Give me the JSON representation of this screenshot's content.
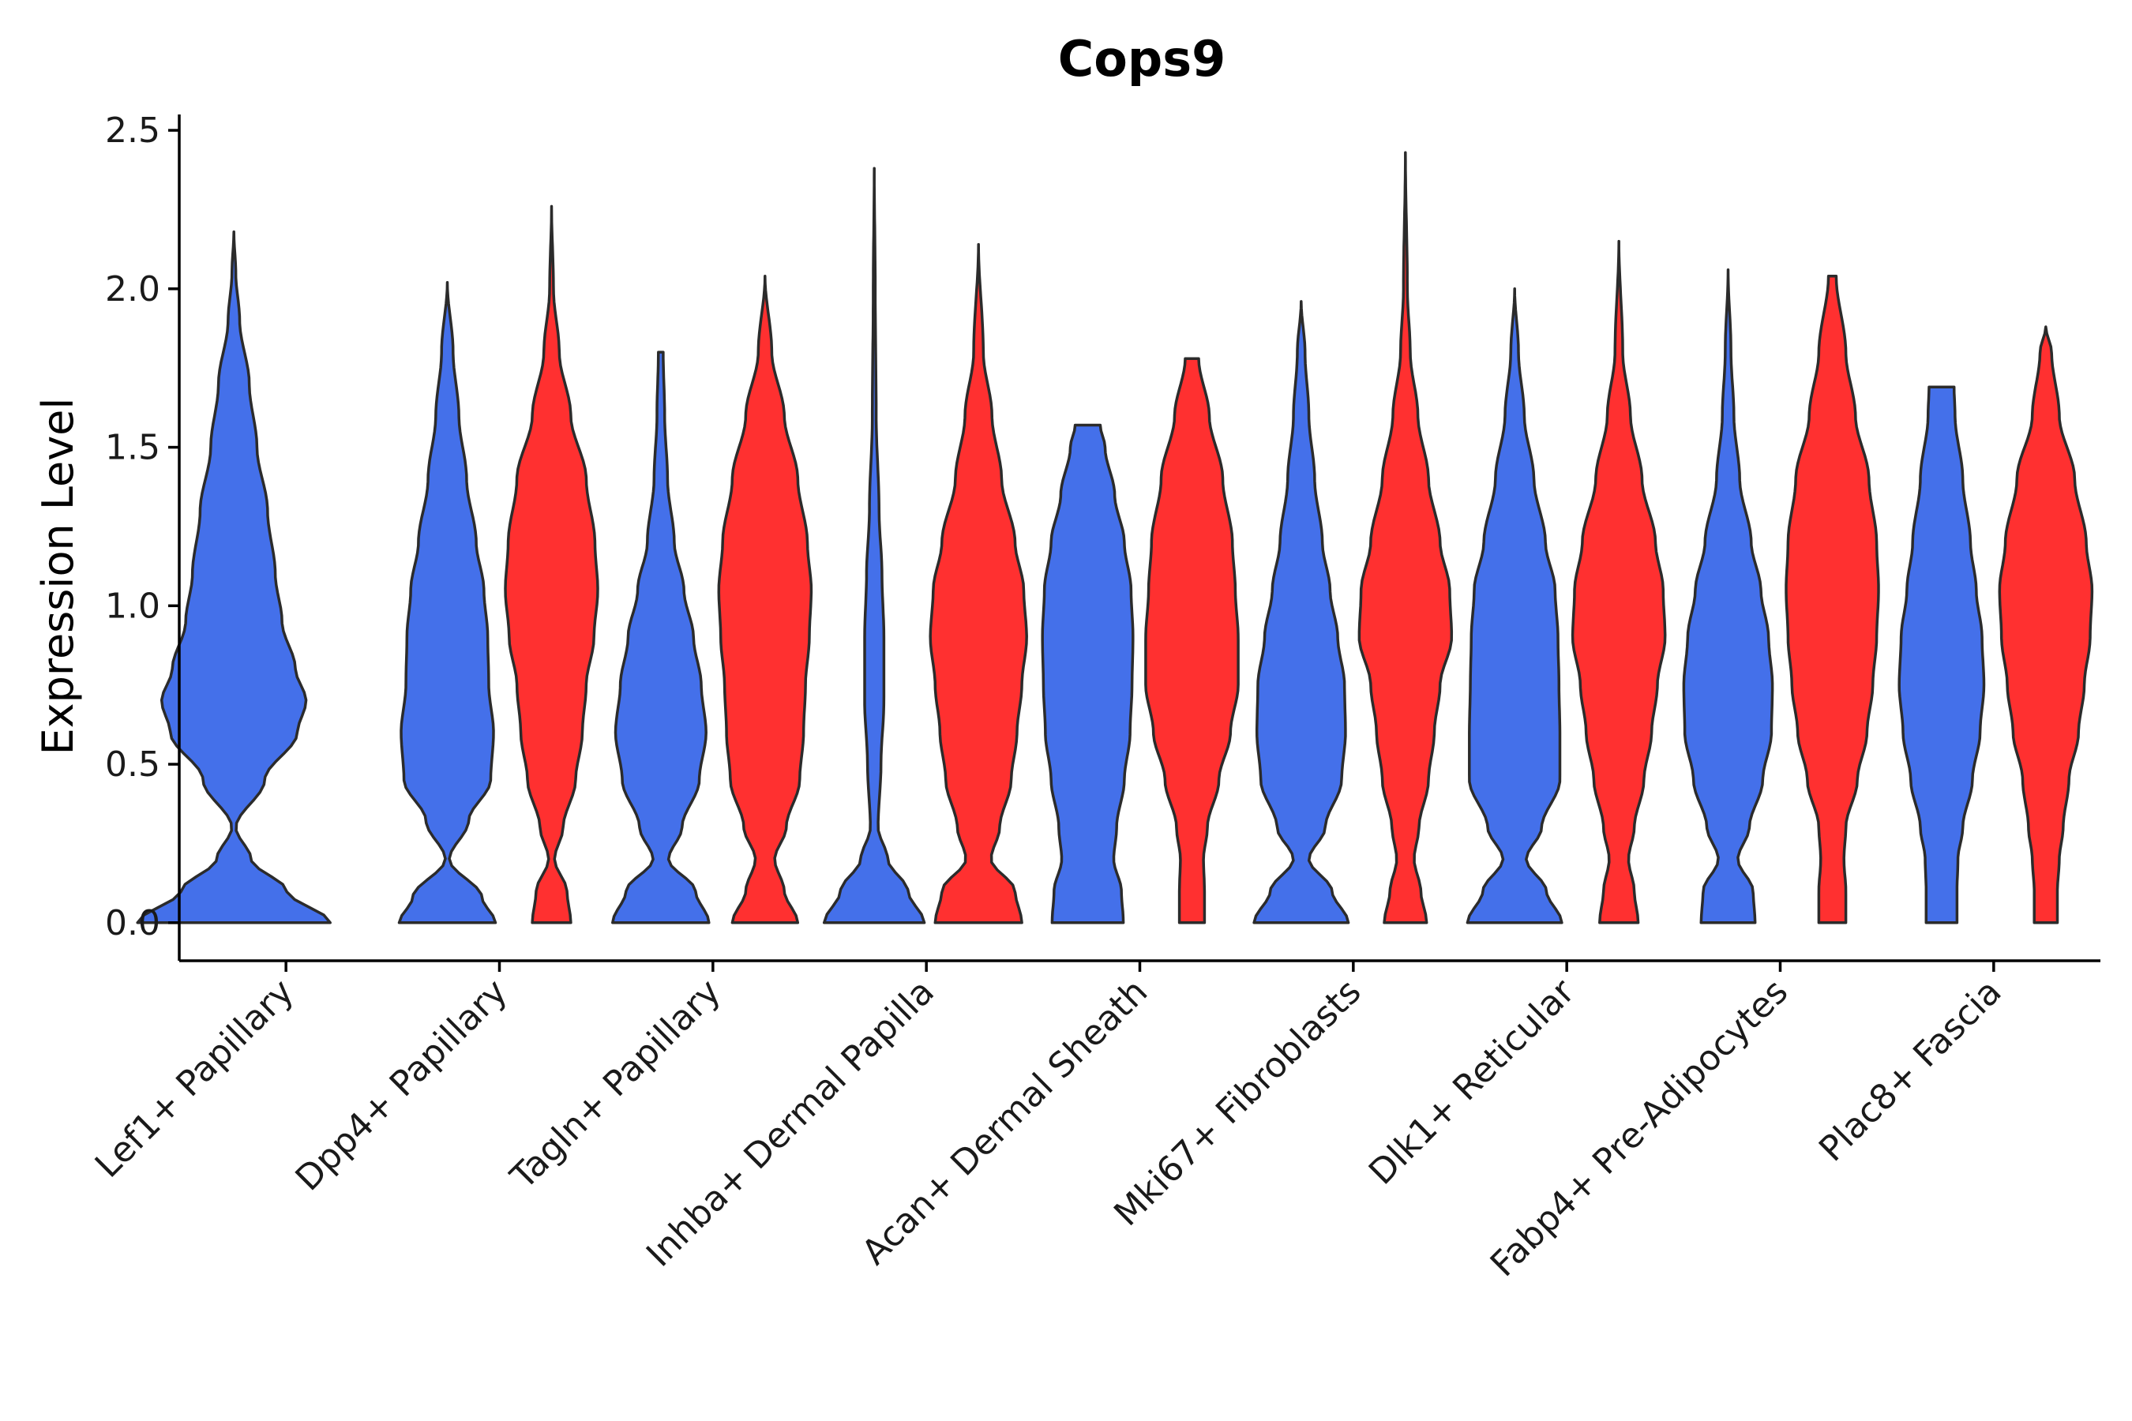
{
  "chart_data": {
    "type": "violin",
    "title": "Cops9",
    "xlabel": "",
    "ylabel": "Expression Level",
    "ylim": [
      -0.12,
      2.55
    ],
    "yticks": [
      "0.0",
      "0.5",
      "1.0",
      "1.5",
      "2.0",
      "2.5"
    ],
    "ytick_values": [
      0,
      0.5,
      1.0,
      1.5,
      2.0,
      2.5
    ],
    "groups": [
      "blue",
      "red"
    ],
    "colors": {
      "blue": "#4470EA",
      "red": "#FF3030"
    },
    "categories": [
      "Lef1+ Papillary",
      "Dpp4+ Papillary",
      "Tagln+ Papillary",
      "Inhba+ Dermal Papilla",
      "Acan+ Dermal Sheath",
      "Mki67+ Fibroblasts",
      "Dlk1+ Reticular",
      "Fabp4+ Pre-Adipocytes",
      "Plac8+ Fascia"
    ],
    "violins": [
      {
        "category": 0,
        "group": "blue",
        "max": 2.18,
        "flatTop": false,
        "profile": [
          [
            0,
            1.0
          ],
          [
            0.1,
            0.55
          ],
          [
            0.2,
            0.18
          ],
          [
            0.3,
            0.02
          ],
          [
            0.45,
            0.32
          ],
          [
            0.6,
            0.66
          ],
          [
            0.7,
            0.75
          ],
          [
            0.8,
            0.64
          ],
          [
            0.95,
            0.5
          ],
          [
            1.1,
            0.43
          ],
          [
            1.3,
            0.35
          ],
          [
            1.5,
            0.24
          ],
          [
            1.7,
            0.16
          ],
          [
            1.9,
            0.06
          ],
          [
            2.05,
            0.02
          ],
          [
            2.18,
            0
          ]
        ]
      },
      {
        "category": 1,
        "group": "blue",
        "max": 2.02,
        "flatTop": false,
        "profile": [
          [
            0,
            0.5
          ],
          [
            0.08,
            0.36
          ],
          [
            0.2,
            0.02
          ],
          [
            0.32,
            0.22
          ],
          [
            0.45,
            0.45
          ],
          [
            0.6,
            0.48
          ],
          [
            0.75,
            0.43
          ],
          [
            0.9,
            0.42
          ],
          [
            1.05,
            0.38
          ],
          [
            1.2,
            0.3
          ],
          [
            1.4,
            0.2
          ],
          [
            1.6,
            0.12
          ],
          [
            1.8,
            0.06
          ],
          [
            2.02,
            0
          ]
        ]
      },
      {
        "category": 1,
        "group": "red",
        "max": 2.26,
        "flatTop": false,
        "profile": [
          [
            0,
            0.2
          ],
          [
            0.1,
            0.16
          ],
          [
            0.2,
            0.03
          ],
          [
            0.3,
            0.12
          ],
          [
            0.45,
            0.25
          ],
          [
            0.6,
            0.32
          ],
          [
            0.75,
            0.36
          ],
          [
            0.9,
            0.44
          ],
          [
            1.05,
            0.48
          ],
          [
            1.2,
            0.45
          ],
          [
            1.4,
            0.36
          ],
          [
            1.6,
            0.2
          ],
          [
            1.8,
            0.08
          ],
          [
            2.0,
            0.02
          ],
          [
            2.26,
            0
          ]
        ]
      },
      {
        "category": 2,
        "group": "blue",
        "max": 1.8,
        "flatTop": true,
        "profile": [
          [
            0,
            0.5
          ],
          [
            0.1,
            0.36
          ],
          [
            0.2,
            0.08
          ],
          [
            0.3,
            0.22
          ],
          [
            0.45,
            0.4
          ],
          [
            0.6,
            0.47
          ],
          [
            0.75,
            0.42
          ],
          [
            0.9,
            0.34
          ],
          [
            1.05,
            0.24
          ],
          [
            1.2,
            0.14
          ],
          [
            1.4,
            0.07
          ],
          [
            1.6,
            0.04
          ],
          [
            1.8,
            0.025
          ]
        ]
      },
      {
        "category": 2,
        "group": "red",
        "max": 2.04,
        "flatTop": false,
        "profile": [
          [
            0,
            0.34
          ],
          [
            0.1,
            0.2
          ],
          [
            0.2,
            0.1
          ],
          [
            0.3,
            0.22
          ],
          [
            0.45,
            0.36
          ],
          [
            0.6,
            0.4
          ],
          [
            0.75,
            0.42
          ],
          [
            0.9,
            0.46
          ],
          [
            1.05,
            0.48
          ],
          [
            1.2,
            0.44
          ],
          [
            1.4,
            0.34
          ],
          [
            1.6,
            0.2
          ],
          [
            1.8,
            0.07
          ],
          [
            2.04,
            0
          ]
        ]
      },
      {
        "category": 3,
        "group": "blue",
        "max": 2.38,
        "flatTop": false,
        "profile": [
          [
            0,
            0.52
          ],
          [
            0.1,
            0.35
          ],
          [
            0.2,
            0.14
          ],
          [
            0.3,
            0.04
          ],
          [
            0.5,
            0.07
          ],
          [
            0.7,
            0.1
          ],
          [
            0.9,
            0.1
          ],
          [
            1.1,
            0.08
          ],
          [
            1.3,
            0.05
          ],
          [
            1.6,
            0.02
          ],
          [
            2.0,
            0.01
          ],
          [
            2.38,
            0
          ]
        ]
      },
      {
        "category": 3,
        "group": "red",
        "max": 2.14,
        "flatTop": false,
        "profile": [
          [
            0,
            0.45
          ],
          [
            0.1,
            0.38
          ],
          [
            0.2,
            0.13
          ],
          [
            0.3,
            0.22
          ],
          [
            0.45,
            0.34
          ],
          [
            0.6,
            0.4
          ],
          [
            0.75,
            0.45
          ],
          [
            0.9,
            0.5
          ],
          [
            1.05,
            0.47
          ],
          [
            1.2,
            0.38
          ],
          [
            1.4,
            0.24
          ],
          [
            1.6,
            0.14
          ],
          [
            1.8,
            0.05
          ],
          [
            2.14,
            0
          ]
        ]
      },
      {
        "category": 4,
        "group": "blue",
        "max": 1.57,
        "flatTop": true,
        "profile": [
          [
            0,
            0.37
          ],
          [
            0.1,
            0.35
          ],
          [
            0.2,
            0.27
          ],
          [
            0.3,
            0.3
          ],
          [
            0.45,
            0.38
          ],
          [
            0.6,
            0.44
          ],
          [
            0.75,
            0.46
          ],
          [
            0.9,
            0.47
          ],
          [
            1.05,
            0.45
          ],
          [
            1.2,
            0.38
          ],
          [
            1.35,
            0.28
          ],
          [
            1.5,
            0.18
          ],
          [
            1.57,
            0.13
          ]
        ]
      },
      {
        "category": 4,
        "group": "red",
        "max": 1.78,
        "flatTop": true,
        "profile": [
          [
            0,
            0.13
          ],
          [
            0.1,
            0.13
          ],
          [
            0.2,
            0.12
          ],
          [
            0.3,
            0.16
          ],
          [
            0.45,
            0.28
          ],
          [
            0.6,
            0.4
          ],
          [
            0.75,
            0.48
          ],
          [
            0.9,
            0.48
          ],
          [
            1.05,
            0.45
          ],
          [
            1.2,
            0.42
          ],
          [
            1.4,
            0.32
          ],
          [
            1.6,
            0.18
          ],
          [
            1.78,
            0.07
          ]
        ]
      },
      {
        "category": 5,
        "group": "blue",
        "max": 1.96,
        "flatTop": false,
        "profile": [
          [
            0,
            0.49
          ],
          [
            0.1,
            0.32
          ],
          [
            0.2,
            0.08
          ],
          [
            0.3,
            0.25
          ],
          [
            0.45,
            0.42
          ],
          [
            0.6,
            0.46
          ],
          [
            0.75,
            0.45
          ],
          [
            0.9,
            0.38
          ],
          [
            1.05,
            0.3
          ],
          [
            1.2,
            0.22
          ],
          [
            1.4,
            0.14
          ],
          [
            1.6,
            0.08
          ],
          [
            1.8,
            0.04
          ],
          [
            1.96,
            0
          ]
        ]
      },
      {
        "category": 5,
        "group": "red",
        "max": 2.43,
        "flatTop": false,
        "profile": [
          [
            0,
            0.22
          ],
          [
            0.1,
            0.16
          ],
          [
            0.2,
            0.09
          ],
          [
            0.3,
            0.14
          ],
          [
            0.45,
            0.24
          ],
          [
            0.6,
            0.3
          ],
          [
            0.75,
            0.36
          ],
          [
            0.9,
            0.48
          ],
          [
            1.05,
            0.46
          ],
          [
            1.2,
            0.36
          ],
          [
            1.4,
            0.24
          ],
          [
            1.6,
            0.13
          ],
          [
            1.8,
            0.05
          ],
          [
            2.0,
            0.02
          ],
          [
            2.43,
            0
          ]
        ]
      },
      {
        "category": 6,
        "group": "blue",
        "max": 2.0,
        "flatTop": false,
        "profile": [
          [
            0,
            0.49
          ],
          [
            0.1,
            0.33
          ],
          [
            0.2,
            0.12
          ],
          [
            0.3,
            0.28
          ],
          [
            0.45,
            0.47
          ],
          [
            0.6,
            0.47
          ],
          [
            0.75,
            0.46
          ],
          [
            0.9,
            0.45
          ],
          [
            1.05,
            0.42
          ],
          [
            1.2,
            0.32
          ],
          [
            1.4,
            0.2
          ],
          [
            1.6,
            0.1
          ],
          [
            1.8,
            0.04
          ],
          [
            2.0,
            0
          ]
        ]
      },
      {
        "category": 6,
        "group": "red",
        "max": 2.15,
        "flatTop": false,
        "profile": [
          [
            0,
            0.2
          ],
          [
            0.1,
            0.16
          ],
          [
            0.2,
            0.1
          ],
          [
            0.3,
            0.16
          ],
          [
            0.45,
            0.26
          ],
          [
            0.6,
            0.34
          ],
          [
            0.75,
            0.4
          ],
          [
            0.9,
            0.48
          ],
          [
            1.05,
            0.46
          ],
          [
            1.2,
            0.38
          ],
          [
            1.4,
            0.24
          ],
          [
            1.6,
            0.12
          ],
          [
            1.8,
            0.04
          ],
          [
            2.15,
            0
          ]
        ]
      },
      {
        "category": 7,
        "group": "blue",
        "max": 2.06,
        "flatTop": false,
        "profile": [
          [
            0,
            0.28
          ],
          [
            0.1,
            0.26
          ],
          [
            0.2,
            0.1
          ],
          [
            0.3,
            0.22
          ],
          [
            0.45,
            0.36
          ],
          [
            0.6,
            0.45
          ],
          [
            0.75,
            0.46
          ],
          [
            0.9,
            0.42
          ],
          [
            1.05,
            0.34
          ],
          [
            1.2,
            0.24
          ],
          [
            1.4,
            0.12
          ],
          [
            1.6,
            0.06
          ],
          [
            1.8,
            0.03
          ],
          [
            2.06,
            0
          ]
        ]
      },
      {
        "category": 7,
        "group": "red",
        "max": 2.04,
        "flatTop": true,
        "profile": [
          [
            0,
            0.14
          ],
          [
            0.1,
            0.14
          ],
          [
            0.2,
            0.12
          ],
          [
            0.3,
            0.14
          ],
          [
            0.45,
            0.26
          ],
          [
            0.6,
            0.36
          ],
          [
            0.75,
            0.42
          ],
          [
            0.9,
            0.46
          ],
          [
            1.05,
            0.48
          ],
          [
            1.2,
            0.46
          ],
          [
            1.4,
            0.38
          ],
          [
            1.6,
            0.24
          ],
          [
            1.8,
            0.14
          ],
          [
            2.04,
            0.04
          ]
        ]
      },
      {
        "category": 8,
        "group": "blue",
        "max": 1.69,
        "flatTop": true,
        "profile": [
          [
            0,
            0.16
          ],
          [
            0.1,
            0.16
          ],
          [
            0.2,
            0.17
          ],
          [
            0.3,
            0.22
          ],
          [
            0.45,
            0.32
          ],
          [
            0.6,
            0.4
          ],
          [
            0.75,
            0.44
          ],
          [
            0.9,
            0.42
          ],
          [
            1.05,
            0.36
          ],
          [
            1.2,
            0.3
          ],
          [
            1.4,
            0.22
          ],
          [
            1.6,
            0.14
          ],
          [
            1.69,
            0.13
          ]
        ]
      },
      {
        "category": 8,
        "group": "red",
        "max": 1.88,
        "flatTop": false,
        "profile": [
          [
            0,
            0.12
          ],
          [
            0.1,
            0.12
          ],
          [
            0.2,
            0.14
          ],
          [
            0.3,
            0.18
          ],
          [
            0.45,
            0.24
          ],
          [
            0.6,
            0.34
          ],
          [
            0.75,
            0.4
          ],
          [
            0.9,
            0.46
          ],
          [
            1.05,
            0.48
          ],
          [
            1.2,
            0.42
          ],
          [
            1.4,
            0.3
          ],
          [
            1.6,
            0.14
          ],
          [
            1.8,
            0.06
          ],
          [
            1.88,
            0
          ]
        ]
      }
    ]
  }
}
